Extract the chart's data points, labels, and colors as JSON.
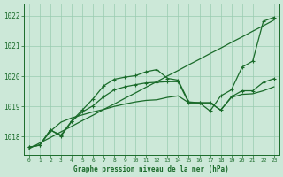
{
  "title": "Graphe pression niveau de la mer (hPa)",
  "x_labels": [
    "0",
    "1",
    "2",
    "3",
    "4",
    "5",
    "6",
    "7",
    "8",
    "9",
    "10",
    "11",
    "12",
    "13",
    "14",
    "15",
    "16",
    "17",
    "18",
    "19",
    "20",
    "21",
    "22",
    "23"
  ],
  "ylim": [
    1017.4,
    1022.4
  ],
  "yticks": [
    1018,
    1019,
    1020,
    1021,
    1022
  ],
  "background_color": "#cce8d8",
  "grid_color": "#99ccb0",
  "line_color": "#1a6b2a",
  "series": {
    "straight": [
      1017.6,
      1017.79,
      1017.97,
      1018.16,
      1018.34,
      1018.53,
      1018.71,
      1018.9,
      1019.08,
      1019.27,
      1019.45,
      1019.64,
      1019.82,
      1020.01,
      1020.19,
      1020.38,
      1020.56,
      1020.75,
      1020.93,
      1021.12,
      1021.3,
      1021.49,
      1021.67,
      1021.86
    ],
    "upper_curve": [
      1017.65,
      1017.72,
      1018.22,
      1018.05,
      1018.52,
      1018.88,
      1019.25,
      1019.68,
      1019.9,
      1019.97,
      1020.02,
      1020.15,
      1020.22,
      1019.93,
      1019.87,
      1019.15,
      1019.12,
      1018.85,
      1019.35,
      1019.55,
      1020.3,
      1020.5,
      1021.82,
      1021.95
    ],
    "lower_curve": [
      1017.65,
      1017.72,
      1018.22,
      1018.02,
      1018.5,
      1018.82,
      1019.02,
      1019.32,
      1019.55,
      1019.65,
      1019.72,
      1019.78,
      1019.8,
      1019.82,
      1019.82,
      1019.12,
      1019.12,
      1019.12,
      1018.88,
      1019.32,
      1019.52,
      1019.52,
      1019.8,
      1019.92
    ],
    "flat1": [
      1017.65,
      1017.72,
      1018.18,
      1018.48,
      1018.62,
      1018.72,
      1018.82,
      1018.9,
      1019.0,
      1019.08,
      1019.15,
      1019.2,
      1019.22,
      1019.3,
      1019.35,
      1019.12,
      1019.12,
      1019.12,
      1018.88,
      1019.3,
      1019.4,
      1019.42,
      1019.52,
      1019.65
    ]
  }
}
